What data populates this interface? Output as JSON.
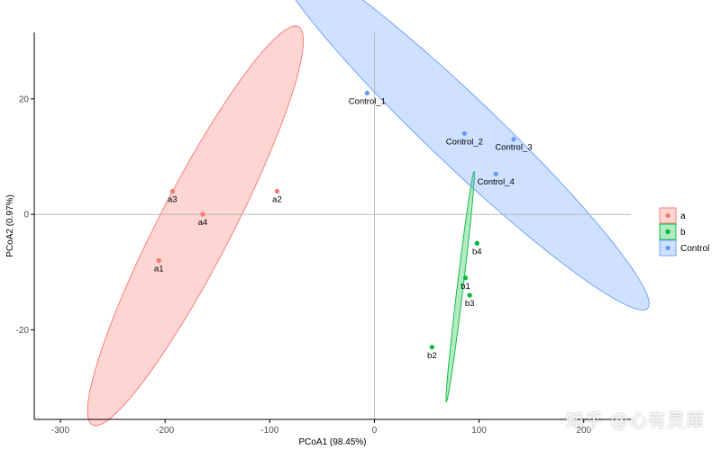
{
  "chart_data": {
    "type": "scatter",
    "xlabel": "PCoA1 (98.45%)",
    "ylabel": "PCoA2 (0.97%)",
    "xlim": [
      -325,
      245
    ],
    "ylim": [
      -35.5,
      31.5
    ],
    "xticks": [
      -300,
      -200,
      -100,
      0,
      100,
      200
    ],
    "yticks": [
      -20,
      0,
      20
    ],
    "grid": false,
    "reference_lines": {
      "x": 0,
      "y": 0
    },
    "legend_position": "right",
    "series": [
      {
        "name": "a",
        "color": "#F8766D",
        "points": [
          {
            "label": "a1",
            "x": -206,
            "y": -8
          },
          {
            "label": "a3",
            "x": -193,
            "y": 4
          },
          {
            "label": "a2",
            "x": -93,
            "y": 4
          },
          {
            "label": "a4",
            "x": -164,
            "y": 0
          }
        ],
        "ellipse": {
          "cx": -171,
          "cy": -2,
          "a": 108,
          "b": 12.5,
          "angle": 17.5
        }
      },
      {
        "name": "b",
        "color": "#00BA38",
        "points": [
          {
            "label": "b2",
            "x": 55,
            "y": -23
          },
          {
            "label": "b1",
            "x": 87,
            "y": -11
          },
          {
            "label": "b3",
            "x": 91,
            "y": -14
          },
          {
            "label": "b4",
            "x": 98,
            "y": -5
          }
        ],
        "ellipse": {
          "cx": 82,
          "cy": -12.5,
          "a": 24,
          "b": 2.4,
          "angle": 56
        }
      },
      {
        "name": "Control",
        "color": "#619CFF",
        "points": [
          {
            "label": "Control_1",
            "x": -7,
            "y": 21
          },
          {
            "label": "Control_2",
            "x": 86,
            "y": 14
          },
          {
            "label": "Control_3",
            "x": 133,
            "y": 13
          },
          {
            "label": "Control_4",
            "x": 116,
            "y": 7
          }
        ],
        "ellipse": {
          "cx": 83,
          "cy": 14.5,
          "a": 182,
          "b": 8,
          "angle": -9.5
        }
      }
    ]
  },
  "watermark": "知乎 @心有灵犀"
}
